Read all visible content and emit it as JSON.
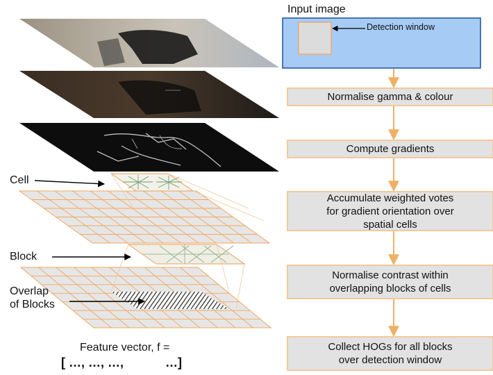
{
  "input_panel": {
    "title": "Input image",
    "detection_window_label": "Detection window"
  },
  "pipeline_steps": [
    "Normalise gamma & colour",
    "Compute gradients",
    "Accumulate weighted votes\nfor gradient orientation over\nspatial cells",
    "Normalise contrast within\noverlapping blocks of cells",
    "Collect HOGs for all blocks\nover detection window"
  ],
  "left_labels": {
    "cell": "Cell",
    "block": "Block",
    "overlap": "Overlap\nof Blocks"
  },
  "feature_vector": {
    "caption": "Feature vector, f =",
    "vector": "[ …, …, …,            …]"
  },
  "colors": {
    "input_fill": "#a6cbf5",
    "window_fill": "#dcdcdc",
    "window_border": "#f0a868",
    "step_fill": "#e2e2e2",
    "step_border": "#f3c99a",
    "arrow": "#efb066",
    "grid_line": "#f0a860",
    "grid_fill": "#e6e6e6"
  }
}
